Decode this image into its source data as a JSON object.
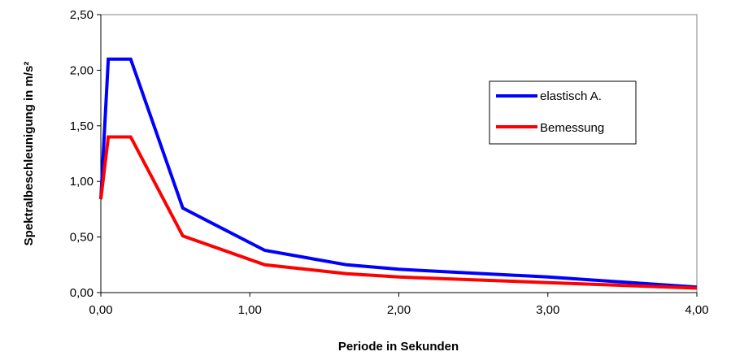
{
  "chart_data": {
    "type": "line",
    "title": "",
    "xlabel": "Periode in Sekunden",
    "ylabel": "Spektralbeschleunigung in m/s²",
    "xlim": [
      0,
      4
    ],
    "ylim": [
      0,
      2.5
    ],
    "x_ticks": [
      0,
      1,
      2,
      3,
      4
    ],
    "x_tick_labels": [
      "0,00",
      "1,00",
      "2,00",
      "3,00",
      "4,00"
    ],
    "y_ticks": [
      0,
      0.5,
      1,
      1.5,
      2,
      2.5
    ],
    "y_tick_labels": [
      "0,00",
      "0,50",
      "1,00",
      "1,50",
      "2,00",
      "2,50"
    ],
    "grid": false,
    "legend_position": "right",
    "series": [
      {
        "name": "elastisch A.",
        "color": "#0000ff",
        "points": [
          [
            0,
            0.84
          ],
          [
            0.05,
            2.1
          ],
          [
            0.2,
            2.1
          ],
          [
            0.55,
            0.76
          ],
          [
            1.1,
            0.38
          ],
          [
            1.65,
            0.25
          ],
          [
            2.0,
            0.21
          ],
          [
            3.0,
            0.14
          ],
          [
            4.0,
            0.05
          ]
        ]
      },
      {
        "name": "Bemessung",
        "color": "#ff0000",
        "points": [
          [
            0,
            0.84
          ],
          [
            0.05,
            1.4
          ],
          [
            0.2,
            1.4
          ],
          [
            0.55,
            0.51
          ],
          [
            1.1,
            0.25
          ],
          [
            1.65,
            0.17
          ],
          [
            2.0,
            0.14
          ],
          [
            3.0,
            0.09
          ],
          [
            4.0,
            0.04
          ]
        ]
      }
    ]
  }
}
